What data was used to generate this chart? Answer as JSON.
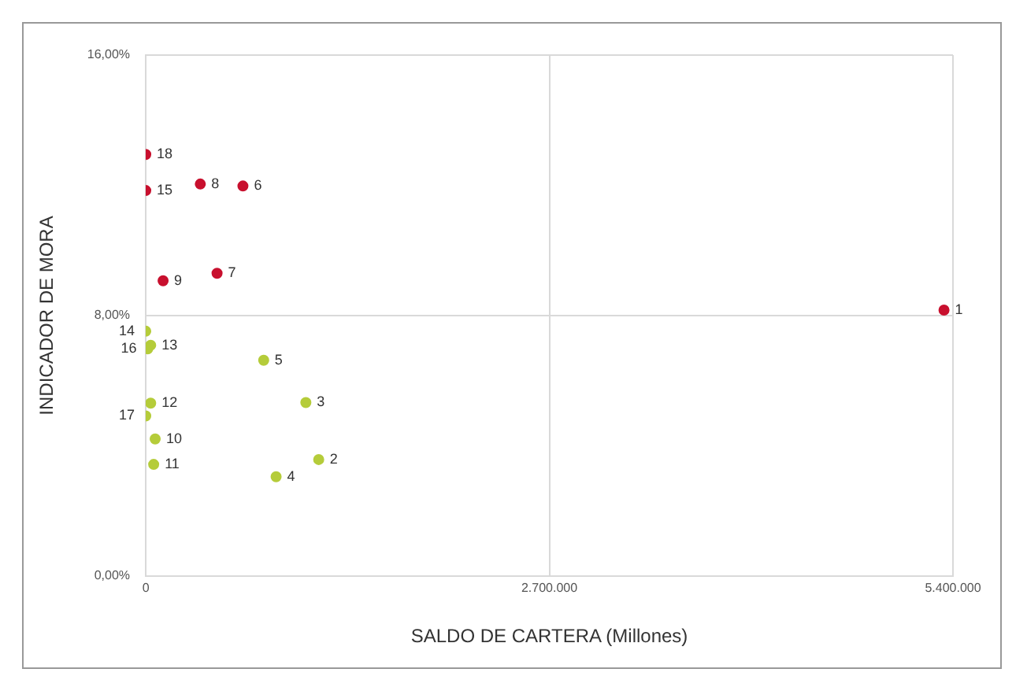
{
  "chart_data": {
    "type": "scatter",
    "xlabel": "SALDO DE CARTERA (Millones)",
    "ylabel": "INDICADOR DE MORA",
    "series": [
      {
        "color": "#c8102e",
        "x": [
          5340000,
          365000,
          650000,
          477000,
          116000,
          0,
          0
        ],
        "values": [
          8.17,
          12.04,
          11.98,
          9.3,
          9.07,
          11.84,
          12.95
        ]
      },
      {
        "color": "#b5cc3a",
        "x": [
          1157000,
          1071000,
          872000,
          789000,
          63000,
          53000,
          33000,
          33000,
          13000,
          0,
          0
        ],
        "values": [
          3.58,
          5.33,
          3.05,
          6.63,
          4.21,
          3.43,
          5.31,
          7.09,
          6.98,
          4.92,
          7.52
        ]
      }
    ],
    "annotations": [
      {
        "text": "1",
        "x": 5340000,
        "y": 8.17
      },
      {
        "text": "8",
        "x": 365000,
        "y": 12.04
      },
      {
        "text": "6",
        "x": 650000,
        "y": 11.98
      },
      {
        "text": "7",
        "x": 477000,
        "y": 9.3
      },
      {
        "text": "9",
        "x": 116000,
        "y": 9.07
      },
      {
        "text": "15",
        "x": 0,
        "y": 11.84
      },
      {
        "text": "18",
        "x": 0,
        "y": 12.95
      },
      {
        "text": "2",
        "x": 1157000,
        "y": 3.58
      },
      {
        "text": "3",
        "x": 1071000,
        "y": 5.33
      },
      {
        "text": "4",
        "x": 872000,
        "y": 3.05
      },
      {
        "text": "5",
        "x": 789000,
        "y": 6.63
      },
      {
        "text": "10",
        "x": 63000,
        "y": 4.21
      },
      {
        "text": "11",
        "x": 53000,
        "y": 3.43
      },
      {
        "text": "12",
        "x": 33000,
        "y": 5.31
      },
      {
        "text": "13",
        "x": 33000,
        "y": 7.09
      },
      {
        "text": "16",
        "x": 13000,
        "y": 6.98
      },
      {
        "text": "17",
        "x": 0,
        "y": 4.92
      },
      {
        "text": "14",
        "x": 0,
        "y": 7.52
      }
    ],
    "xlim": [
      0,
      5400000
    ],
    "xticks": [
      {
        "value": 0,
        "label": "0"
      },
      {
        "value": 2700000,
        "label": "2.700.000"
      },
      {
        "value": 5400000,
        "label": "5.400.000"
      }
    ],
    "ylim": [
      0,
      16
    ],
    "yticks": [
      {
        "value": 0,
        "label": "0,00%"
      },
      {
        "value": 8,
        "label": "8,00%"
      },
      {
        "value": 16,
        "label": "16,00%"
      }
    ],
    "grid": true,
    "marker": "circle",
    "legend": false
  }
}
